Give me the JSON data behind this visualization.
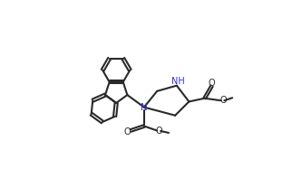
{
  "bg_color": "#ffffff",
  "line_color": "#2a2a2a",
  "line_width": 1.5,
  "nh_color": "#3333cc",
  "n_color": "#3333cc",
  "figsize": [
    3.22,
    2.08
  ],
  "dpi": 100,
  "xlim": [
    0,
    9.5
  ],
  "ylim": [
    0,
    6.5
  ]
}
